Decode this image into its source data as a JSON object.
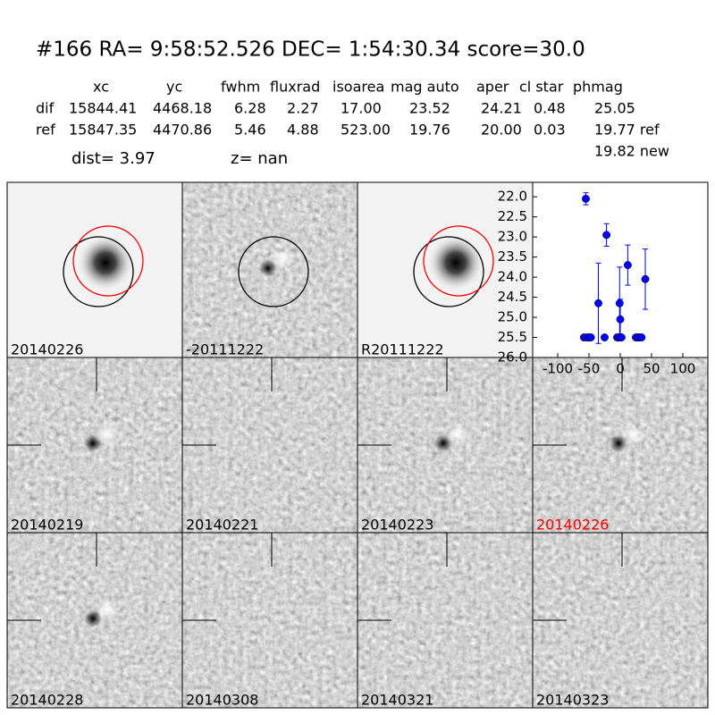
{
  "header": {
    "title": "#166   RA= 9:58:52.526 DEC= 1:54:30.34      score=30.0"
  },
  "table": {
    "columns": [
      "xc",
      "yc",
      "fwhm",
      "fluxrad",
      "isoarea",
      "mag auto",
      "aper",
      "cl star",
      "phmag"
    ],
    "rows": [
      [
        "dif",
        "15844.41",
        "4468.18",
        "6.28",
        "2.27",
        "17.00",
        "23.52",
        "24.21",
        "0.48",
        "25.05"
      ],
      [
        "ref",
        "15847.35",
        "4470.86",
        "5.46",
        "4.88",
        "523.00",
        "19.76",
        "20.00",
        "0.03",
        "19.77 ref"
      ]
    ],
    "extra": "19.82 new"
  },
  "dist": "dist=  3.97",
  "z": "z=   nan",
  "stamps": [
    {
      "label": "20140226",
      "color": "#000000"
    },
    {
      "label": "-20111222",
      "color": "#000000"
    },
    {
      "label": "R20111222",
      "color": "#000000"
    },
    {
      "label": "20140219",
      "color": "#000000"
    },
    {
      "label": "20140221",
      "color": "#000000"
    },
    {
      "label": "20140223",
      "color": "#000000"
    },
    {
      "label": "20140226",
      "color": "#ff0000"
    },
    {
      "label": "20140228",
      "color": "#000000"
    },
    {
      "label": "20140308",
      "color": "#000000"
    },
    {
      "label": "20140321",
      "color": "#000000"
    },
    {
      "label": "20140323",
      "color": "#000000"
    }
  ],
  "chart_data": {
    "type": "scatter",
    "color": "#0000ff",
    "x": [
      -55,
      -58,
      -53,
      -50,
      -47,
      -35,
      -25,
      -22,
      -5,
      -3,
      -1,
      0,
      1,
      2,
      12,
      25,
      28,
      31,
      34,
      40
    ],
    "values": [
      22.05,
      25.5,
      25.5,
      25.5,
      25.5,
      24.65,
      25.5,
      22.95,
      25.5,
      25.5,
      24.65,
      25.05,
      25.5,
      25.5,
      23.7,
      25.5,
      25.5,
      25.5,
      25.5,
      24.05
    ],
    "errors": [
      0.15,
      null,
      null,
      null,
      null,
      1.0,
      null,
      0.28,
      null,
      null,
      0.9,
      0.5,
      null,
      null,
      0.5,
      null,
      null,
      null,
      null,
      0.75
    ],
    "xlim": [
      -140,
      140
    ],
    "ylim": [
      26,
      21.64
    ],
    "xticks": [
      -100,
      -50,
      0,
      50,
      100
    ],
    "yticks": [
      {
        "value": 22,
        "label": "22.0"
      },
      22.5,
      {
        "value": 23,
        "label": "23.0"
      },
      23.5,
      {
        "value": 24,
        "label": "24.0"
      },
      24.5,
      {
        "value": 25,
        "label": "25.0"
      },
      25.5,
      {
        "value": 26,
        "label": "26.0"
      }
    ]
  }
}
